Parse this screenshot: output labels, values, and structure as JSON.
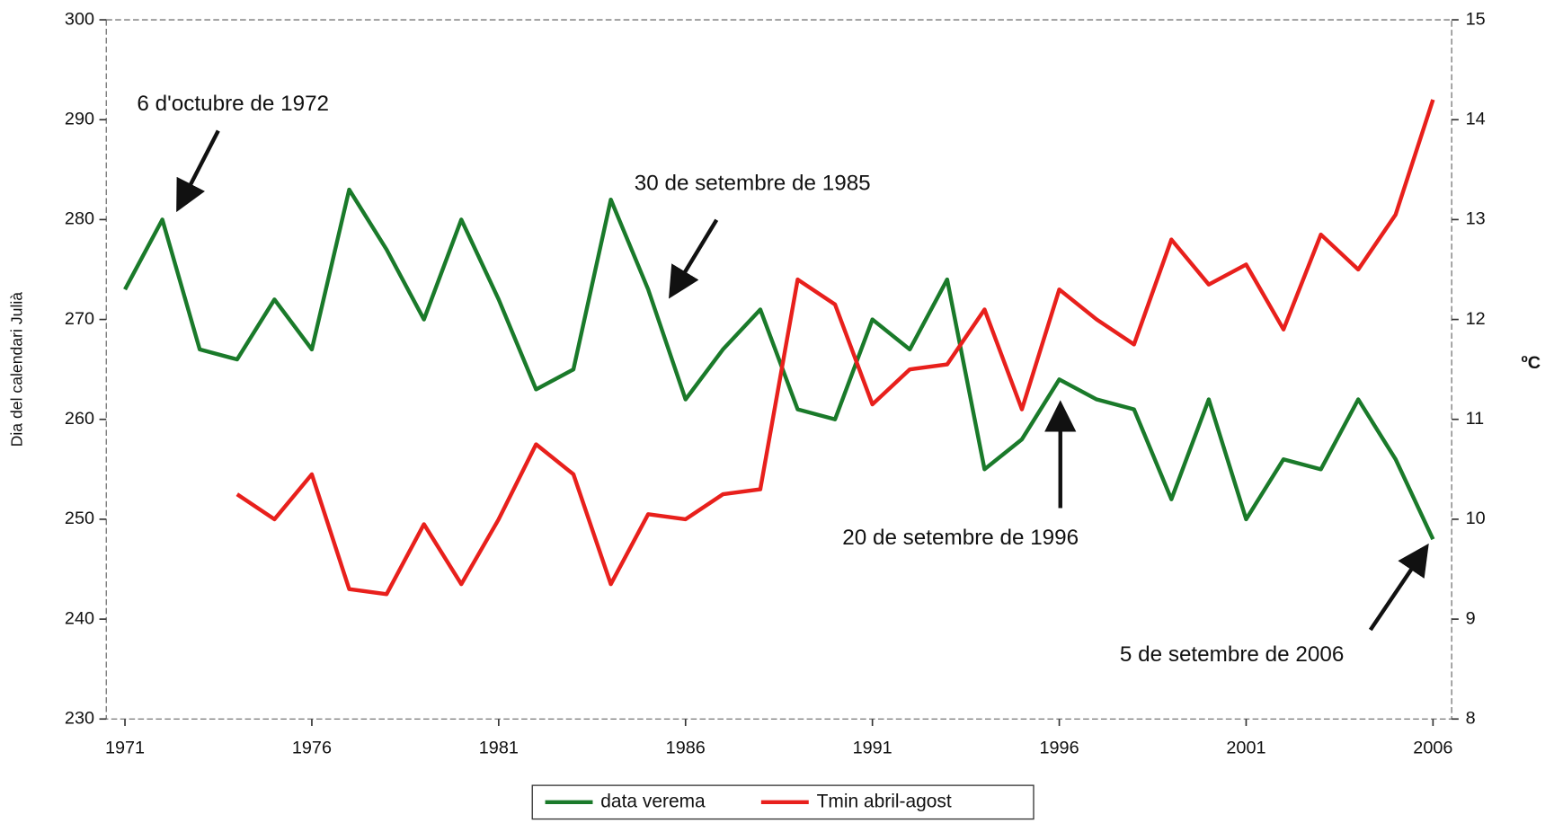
{
  "chart_data": {
    "type": "line",
    "y_label": "Dia del calendari Julià",
    "y2_label": "ºC",
    "x": [
      1971,
      1972,
      1973,
      1974,
      1975,
      1976,
      1977,
      1978,
      1979,
      1980,
      1981,
      1982,
      1983,
      1984,
      1985,
      1986,
      1987,
      1988,
      1989,
      1990,
      1991,
      1992,
      1993,
      1994,
      1995,
      1996,
      1997,
      1998,
      1999,
      2000,
      2001,
      2002,
      2003,
      2004,
      2005,
      2006
    ],
    "xlim": [
      1970.5,
      2006.5
    ],
    "xticks": [
      1971,
      1976,
      1981,
      1986,
      1991,
      1996,
      2001,
      2006
    ],
    "ylim": [
      230,
      300
    ],
    "yticks": [
      230,
      240,
      250,
      260,
      270,
      280,
      290,
      300
    ],
    "y2lim": [
      8,
      15
    ],
    "y2ticks": [
      8,
      9,
      10,
      11,
      12,
      13,
      14,
      15
    ],
    "series": [
      {
        "name": "data verema",
        "color": "#1a7a2a",
        "axis": "y",
        "values": [
          273,
          280,
          267,
          266,
          272,
          267,
          283,
          277,
          270,
          280,
          272,
          263,
          265,
          282,
          273,
          262,
          267,
          271,
          261,
          260,
          270,
          267,
          274,
          255,
          258,
          264,
          262,
          261,
          252,
          262,
          250,
          256,
          255,
          262,
          256,
          248
        ]
      },
      {
        "name": "Tmin abril-agost",
        "color": "#e8201c",
        "axis": "y2",
        "values": [
          null,
          null,
          null,
          10.25,
          10.0,
          10.45,
          9.3,
          9.25,
          9.95,
          9.35,
          10.0,
          10.75,
          10.45,
          9.35,
          10.05,
          10.0,
          10.25,
          10.3,
          12.4,
          12.15,
          11.15,
          11.5,
          11.55,
          12.1,
          11.1,
          12.3,
          12.0,
          11.75,
          12.8,
          12.35,
          12.55,
          11.9,
          12.85,
          12.5,
          13.05,
          14.2
        ]
      }
    ],
    "annotations": [
      "6 d'octubre de 1972",
      "30 de setembre de 1985",
      "20 de setembre de 1996",
      "5 de setembre de 2006"
    ],
    "legend": "bottom"
  }
}
